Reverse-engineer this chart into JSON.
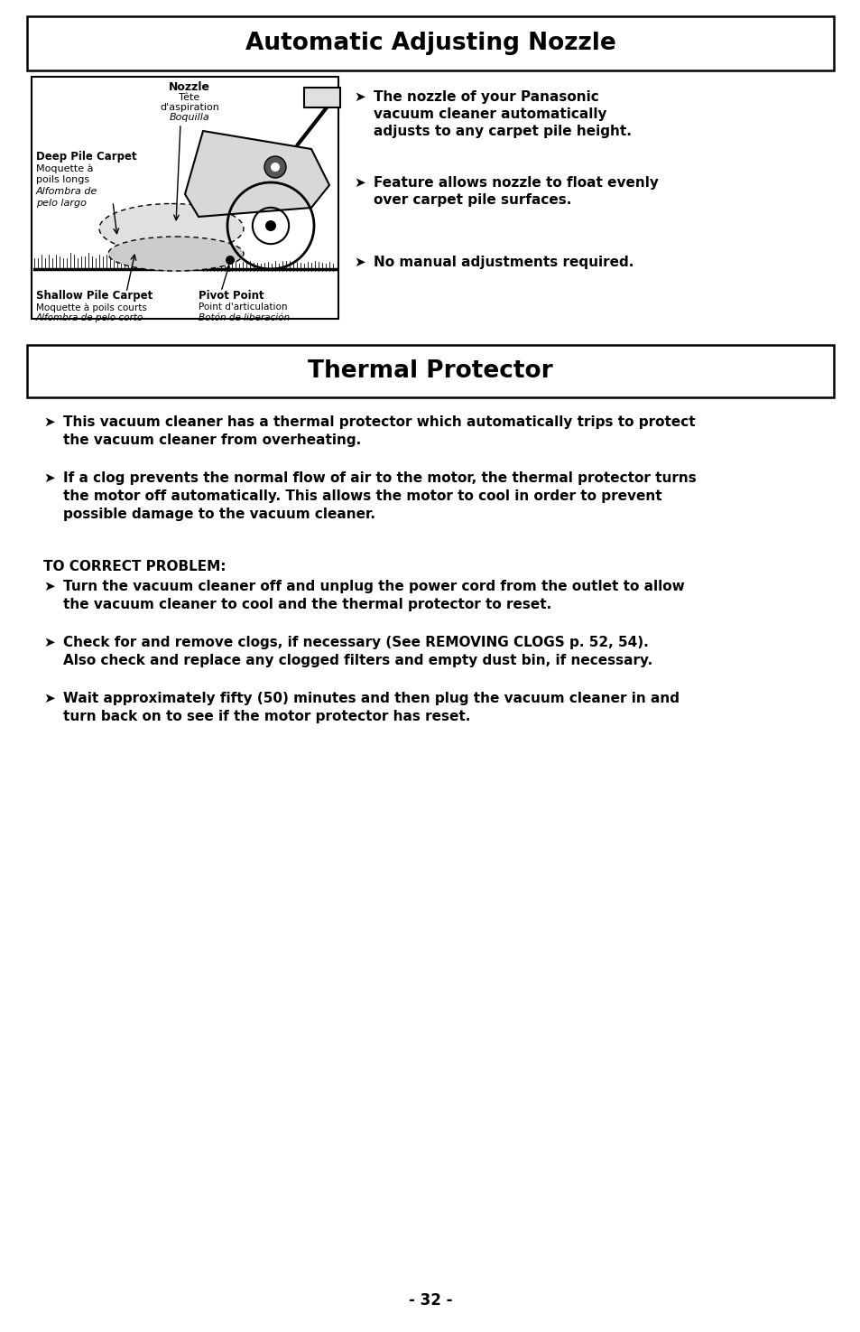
{
  "title1": "Automatic Adjusting Nozzle",
  "title2": "Thermal Protector",
  "page_number": "- 32 -",
  "bg_color": "#ffffff",
  "section1_bullets": [
    "The nozzle of your Panasonic\nvacuum cleaner automatically\nadjusts to any carpet pile height.",
    "Feature allows nozzle to float evenly\nover carpet pile surfaces.",
    "No manual adjustments required."
  ],
  "section2_bullets": [
    "This vacuum cleaner has a thermal protector which automatically trips to protect\nthe vacuum cleaner from overheating.",
    "If a clog prevents the normal flow of air to the motor, the thermal protector turns\nthe motor off automatically. This allows the motor to cool in order to prevent\npossible damage to the vacuum cleaner."
  ],
  "correct_problem_label": "TO CORRECT PROBLEM:",
  "correct_problem_bullets": [
    "Turn the vacuum cleaner off and unplug the power cord from the outlet to allow\nthe vacuum cleaner to cool and the thermal protector to reset.",
    "Check for and remove clogs, if necessary (See REMOVING CLOGS p. 52, 54).\nAlso check and replace any clogged filters and empty dust bin, if necessary.",
    "Wait approximately fifty (50) minutes and then plug the vacuum cleaner in and\nturn back on to see if the motor protector has reset."
  ],
  "diagram_labels": {
    "nozzle": "Nozzle",
    "nozzle_sub1": "Tête",
    "nozzle_sub2": "d'aspiration",
    "nozzle_sub3": "Boquilla",
    "deep_pile": "Deep Pile Carpet",
    "deep_pile_sub1": "Moquette à",
    "deep_pile_sub2": "poils longs",
    "deep_pile_sub3": "Alfombra de",
    "deep_pile_sub4": "pelo largo",
    "shallow_pile": "Shallow Pile Carpet",
    "shallow_pile_sub1": "Moquette à poils courts",
    "shallow_pile_sub2": "Alfombra de pelo corto",
    "pivot": "Pivot Point",
    "pivot_sub1": "Point d'articulation",
    "pivot_sub2": "Botón de liberación"
  }
}
